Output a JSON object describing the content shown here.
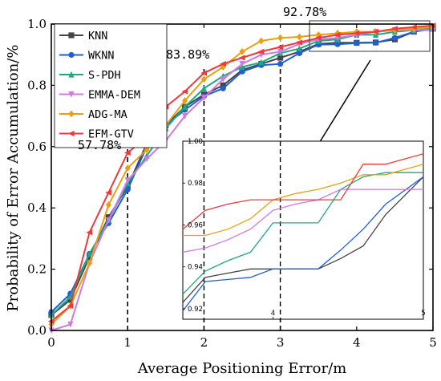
{
  "chart_data": {
    "type": "line",
    "xlabel": "Average Positioning Error/m",
    "ylabel": "Probability of Error Accumulation/%",
    "xlim": [
      0,
      5
    ],
    "ylim": [
      0,
      1.0
    ],
    "xticks": [
      "0",
      "1",
      "2",
      "3",
      "4",
      "5"
    ],
    "yticks": [
      "0.0",
      "0.2",
      "0.4",
      "0.6",
      "0.8",
      "1.0"
    ],
    "grid": false,
    "legend_position": "top-left",
    "x": [
      0,
      0.25,
      0.5,
      0.75,
      1.0,
      1.25,
      1.5,
      1.75,
      2.0,
      2.25,
      2.5,
      2.75,
      3.0,
      3.25,
      3.5,
      3.75,
      4.0,
      4.25,
      4.5,
      4.75,
      5.0
    ],
    "series": [
      {
        "name": "KNN",
        "color": "#444444",
        "marker": "square",
        "values": [
          0.05,
          0.1,
          0.24,
          0.37,
          0.47,
          0.61,
          0.67,
          0.73,
          0.77,
          0.8,
          0.85,
          0.87,
          0.89,
          0.91,
          0.935,
          0.939,
          0.939,
          0.94,
          0.95,
          0.975,
          0.985
        ]
      },
      {
        "name": "WKNN",
        "color": "#1f5fd6",
        "marker": "circle",
        "values": [
          0.06,
          0.12,
          0.25,
          0.35,
          0.46,
          0.6,
          0.67,
          0.72,
          0.765,
          0.79,
          0.845,
          0.866,
          0.87,
          0.905,
          0.933,
          0.934,
          0.938,
          0.939,
          0.955,
          0.975,
          0.985
        ]
      },
      {
        "name": "S-PDH",
        "color": "#1fa882",
        "marker": "triangle-up",
        "values": [
          0.05,
          0.11,
          0.25,
          0.36,
          0.48,
          0.57,
          0.66,
          0.73,
          0.79,
          0.83,
          0.86,
          0.875,
          0.905,
          0.92,
          0.945,
          0.95,
          0.965,
          0.965,
          0.975,
          0.98,
          0.985
        ]
      },
      {
        "name": "EMMA-DEM",
        "color": "#d079e0",
        "marker": "triangle-down",
        "values": [
          0.0,
          0.02,
          0.22,
          0.36,
          0.49,
          0.56,
          0.62,
          0.7,
          0.76,
          0.82,
          0.87,
          0.9,
          0.91,
          0.935,
          0.95,
          0.955,
          0.965,
          0.975,
          0.98,
          0.98,
          0.98
        ]
      },
      {
        "name": "ADG-MA",
        "color": "#e8a010",
        "marker": "diamond",
        "values": [
          0.02,
          0.08,
          0.22,
          0.41,
          0.53,
          0.59,
          0.67,
          0.75,
          0.82,
          0.86,
          0.91,
          0.945,
          0.955,
          0.958,
          0.965,
          0.97,
          0.975,
          0.975,
          0.98,
          0.985,
          0.99
        ]
      },
      {
        "name": "EFM-GTV",
        "color": "#f0393c",
        "marker": "triangle-left",
        "values": [
          0.03,
          0.08,
          0.32,
          0.45,
          0.58,
          0.63,
          0.73,
          0.78,
          0.84,
          0.87,
          0.89,
          0.91,
          0.925,
          0.94,
          0.955,
          0.965,
          0.97,
          0.975,
          0.985,
          0.99,
          0.995
        ]
      }
    ],
    "annotations": [
      {
        "text": "57.78%",
        "x": 1.0,
        "y": 0.5778
      },
      {
        "text": "83.89%",
        "x": 2.0,
        "y": 0.8389
      },
      {
        "text": "92.78%",
        "x": 3.0,
        "y": 0.9278
      }
    ],
    "inset": {
      "xlim": [
        3.4,
        5.0
      ],
      "ylim": [
        0.915,
        1.0
      ],
      "xticks": [
        "4",
        "5"
      ],
      "yticks": [
        "0.92",
        "0.94",
        "0.96",
        "0.98",
        "1.00"
      ],
      "x": [
        3.4,
        3.55,
        3.7,
        3.85,
        4.0,
        4.15,
        4.3,
        4.45,
        4.6,
        4.75,
        5.0
      ],
      "series": [
        {
          "name": "KNN",
          "color": "#444444",
          "values": [
            0.923,
            0.935,
            0.937,
            0.939,
            0.939,
            0.939,
            0.939,
            0.944,
            0.95,
            0.965,
            0.983
          ]
        },
        {
          "name": "WKNN",
          "color": "#1f5fd6",
          "values": [
            0.919,
            0.933,
            0.934,
            0.935,
            0.939,
            0.939,
            0.939,
            0.948,
            0.958,
            0.97,
            0.983
          ]
        },
        {
          "name": "S-PDH",
          "color": "#1fa882",
          "values": [
            0.927,
            0.938,
            0.943,
            0.947,
            0.961,
            0.961,
            0.961,
            0.977,
            0.983,
            0.985,
            0.985
          ]
        },
        {
          "name": "EMMA-DEM",
          "color": "#d079e0",
          "values": [
            0.947,
            0.949,
            0.953,
            0.958,
            0.967,
            0.97,
            0.972,
            0.977,
            0.977,
            0.977,
            0.977
          ]
        },
        {
          "name": "ADG-MA",
          "color": "#e8a010",
          "values": [
            0.955,
            0.955,
            0.958,
            0.963,
            0.972,
            0.975,
            0.977,
            0.98,
            0.984,
            0.984,
            0.989
          ]
        },
        {
          "name": "EFM-GTV",
          "color": "#f0393c",
          "values": [
            0.958,
            0.967,
            0.97,
            0.972,
            0.972,
            0.972,
            0.972,
            0.972,
            0.989,
            0.989,
            0.994
          ]
        }
      ]
    }
  }
}
